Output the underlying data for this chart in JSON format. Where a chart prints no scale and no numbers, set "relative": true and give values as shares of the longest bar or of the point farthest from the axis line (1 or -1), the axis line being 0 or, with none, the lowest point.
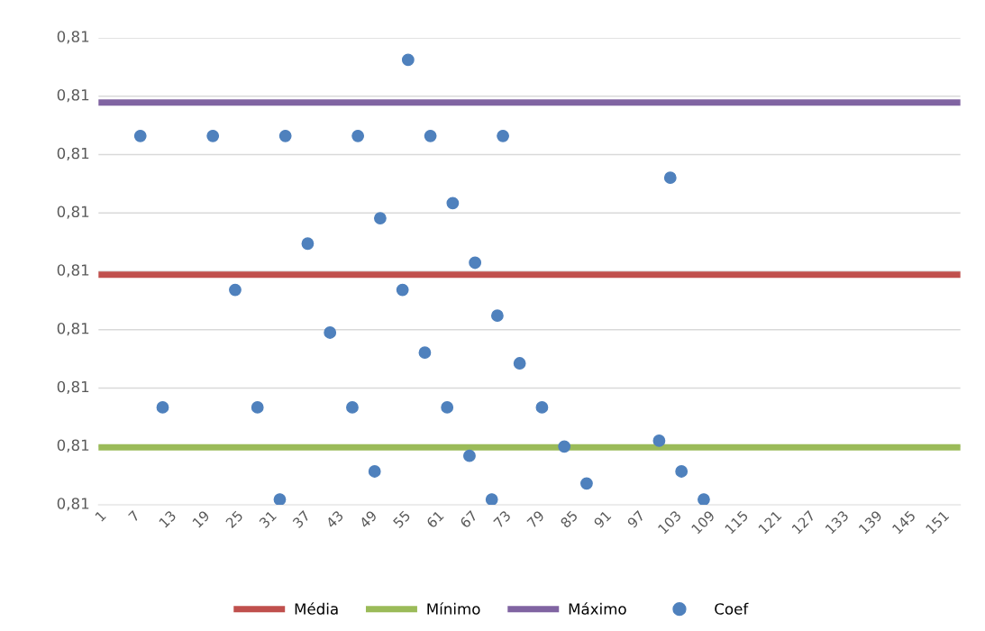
{
  "chart_data": {
    "type": "scatter",
    "relative": true,
    "annotations": [
      "0,81",
      "0,81",
      "0,81",
      "0,81",
      "0,81",
      "0,81",
      "0,81",
      "0,81",
      "0,81"
    ],
    "xlim": [
      0.5,
      155
    ],
    "xticks": [
      1,
      7,
      13,
      19,
      25,
      31,
      37,
      43,
      49,
      55,
      61,
      67,
      73,
      79,
      85,
      91,
      97,
      103,
      109,
      115,
      121,
      127,
      133,
      139,
      145,
      151
    ],
    "grid": "y",
    "legend": "bottom",
    "marker": "circle",
    "ref_lines": [
      {
        "axis": "y",
        "value": 0.517,
        "label": "Média",
        "color": "#c0504d"
      },
      {
        "axis": "y",
        "value": 0.129,
        "label": "Mínimo",
        "color": "#9bbb59"
      },
      {
        "axis": "y",
        "value": 0.904,
        "label": "Máximo",
        "color": "#8064a2"
      }
    ],
    "series": [
      {
        "name": "Coef",
        "color": "#4f81bd",
        "x": [
          8,
          12,
          21,
          25,
          29,
          33,
          34,
          38,
          42,
          46,
          47,
          50,
          51,
          55,
          56,
          59,
          60,
          63,
          64,
          67,
          68,
          71,
          72,
          73,
          76,
          80,
          84,
          88,
          101,
          103,
          105,
          109
        ],
        "values": [
          0.829,
          0.219,
          0.829,
          0.483,
          0.219,
          0.012,
          0.829,
          0.587,
          0.387,
          0.219,
          0.829,
          0.075,
          0.644,
          0.483,
          1,
          0.342,
          0.829,
          0.219,
          0.678,
          0.11,
          0.544,
          0.012,
          0.425,
          0.829,
          0.318,
          0.219,
          0.131,
          0.048,
          0.144,
          0.735,
          0.075,
          0.012
        ]
      }
    ]
  }
}
